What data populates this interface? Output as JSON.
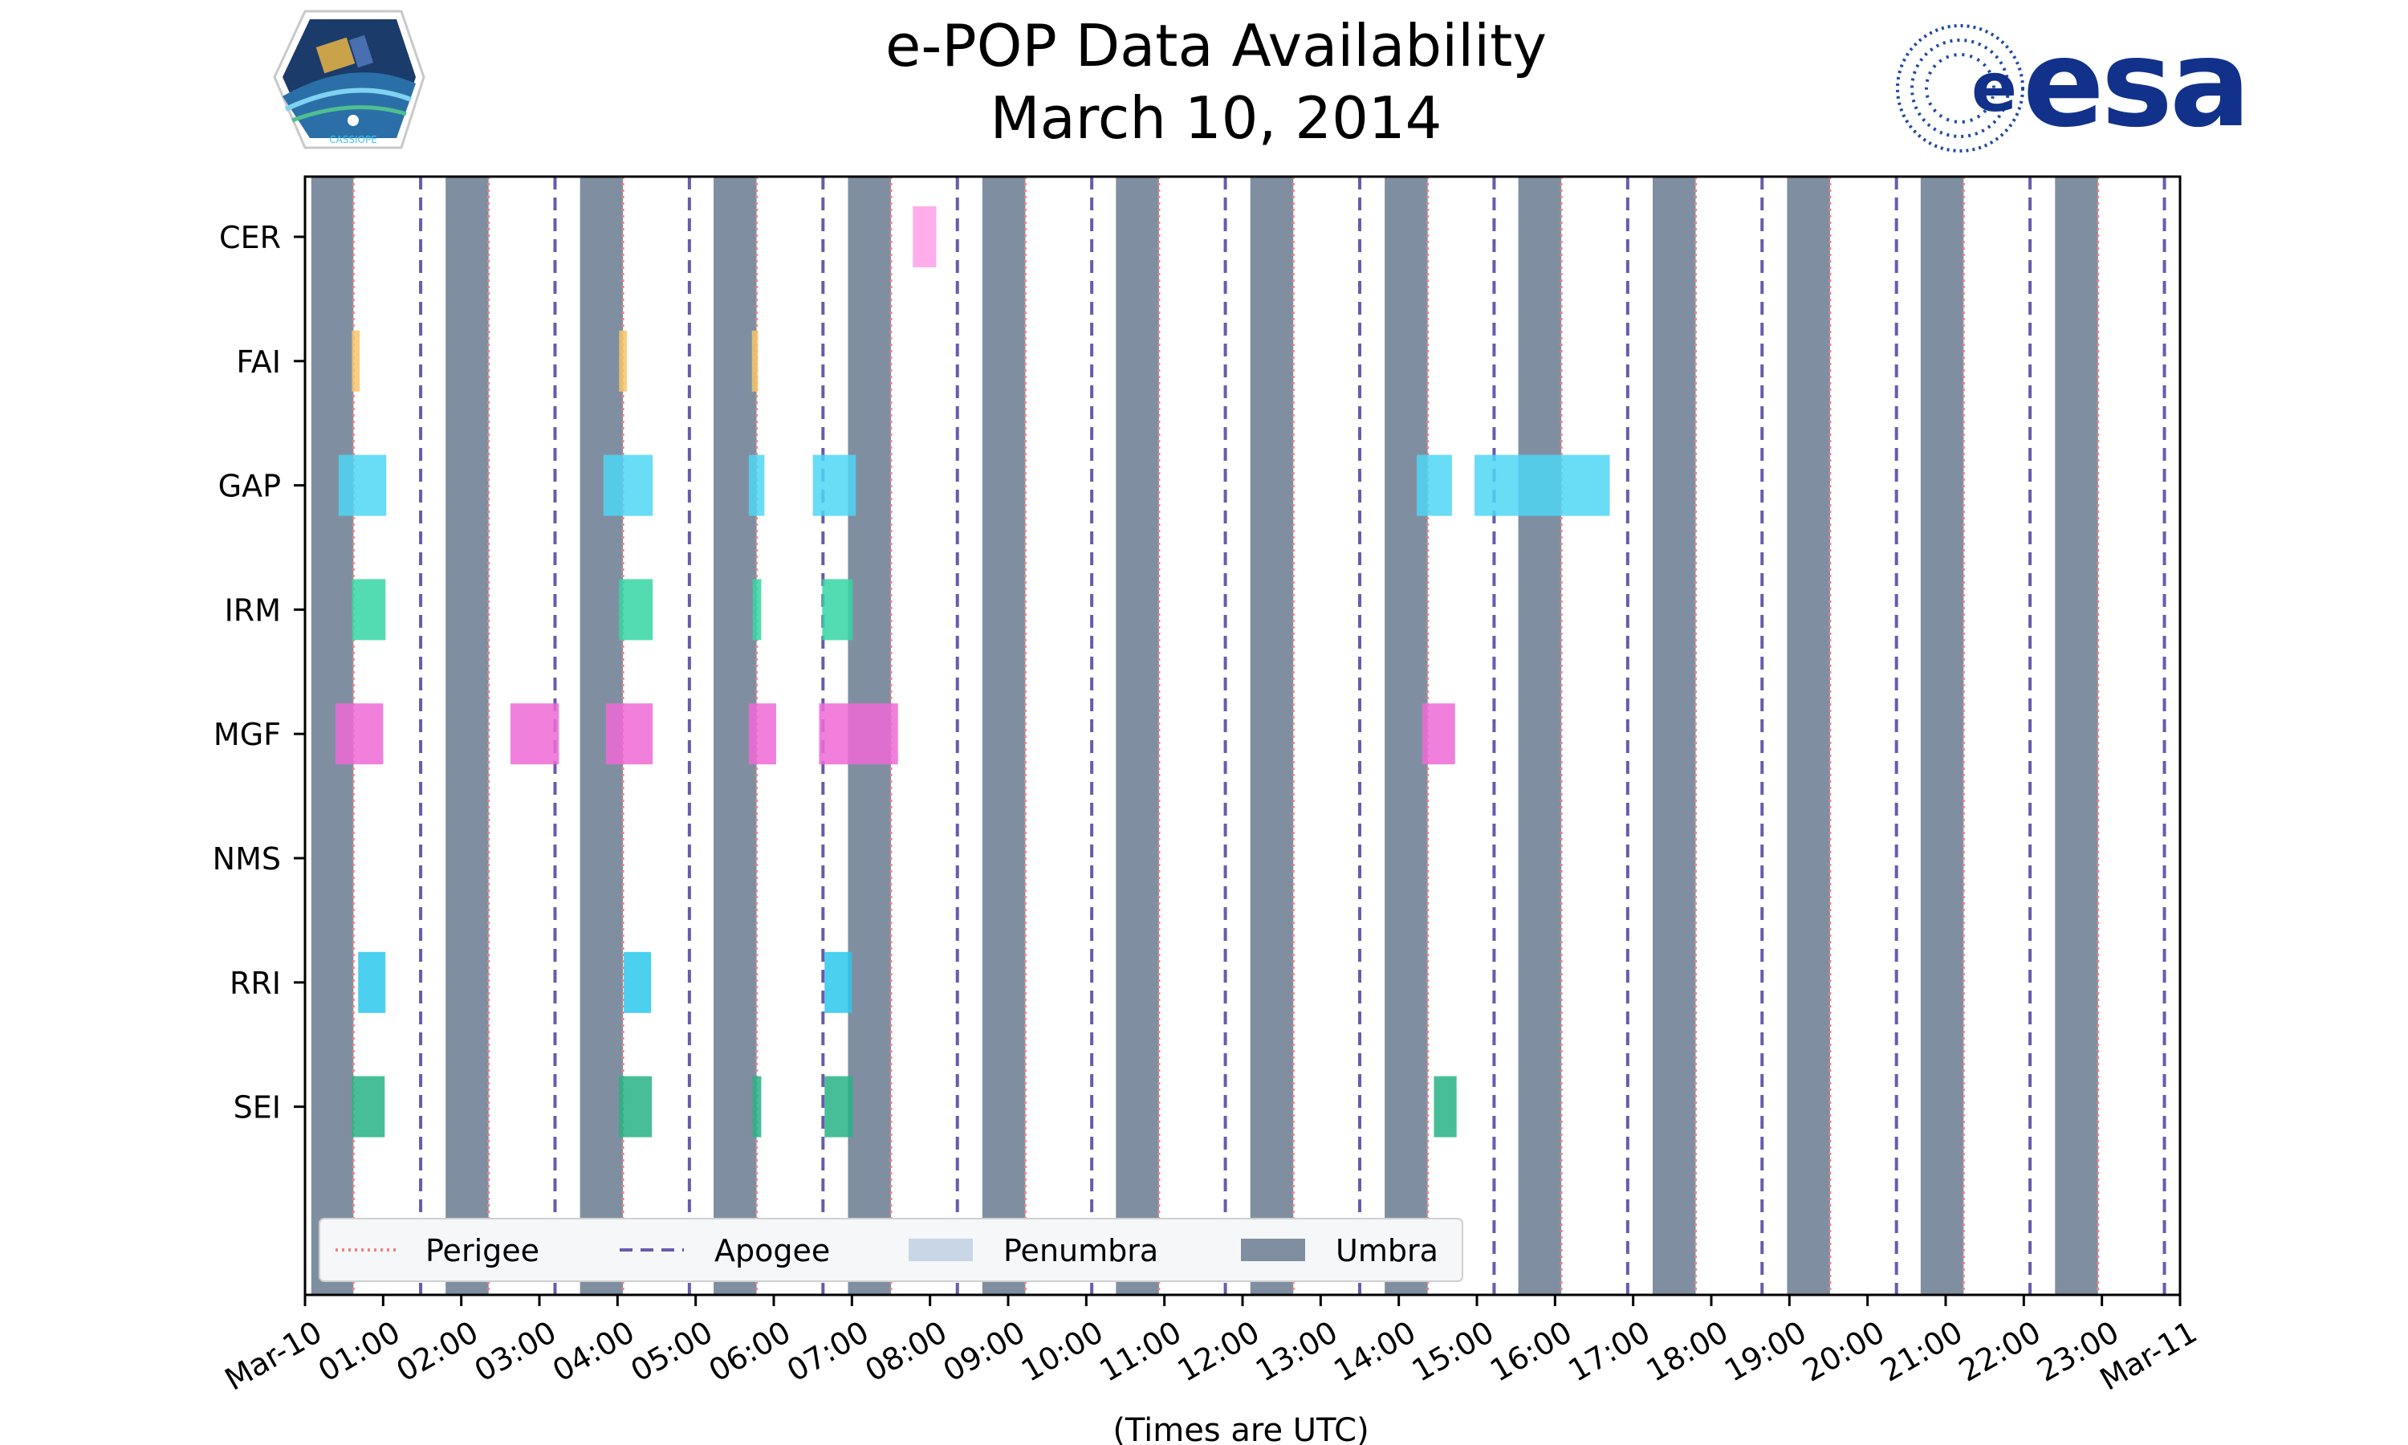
{
  "chart_data": {
    "type": "timeline",
    "title_line1": "e-POP Data Availability",
    "title_line2": "March 10, 2014",
    "xlabel": "(Times are UTC)",
    "xlim_hours": [
      0,
      24
    ],
    "x_tick_hours": [
      0,
      1,
      2,
      3,
      4,
      5,
      6,
      7,
      8,
      9,
      10,
      11,
      12,
      13,
      14,
      15,
      16,
      17,
      18,
      19,
      20,
      21,
      22,
      23,
      24
    ],
    "x_tick_labels": [
      "Mar-10",
      "01:00",
      "02:00",
      "03:00",
      "04:00",
      "05:00",
      "06:00",
      "07:00",
      "08:00",
      "09:00",
      "10:00",
      "11:00",
      "12:00",
      "13:00",
      "14:00",
      "15:00",
      "16:00",
      "17:00",
      "18:00",
      "19:00",
      "20:00",
      "21:00",
      "22:00",
      "23:00",
      "Mar-11"
    ],
    "instruments": [
      "CER",
      "FAI",
      "GAP",
      "IRM",
      "MGF",
      "NMS",
      "RRI",
      "SEI"
    ],
    "colors": {
      "CER": "#ff9fe8",
      "FAI": "#f7c66a",
      "GAP": "#4fd6f5",
      "IRM": "#35d6a3",
      "MGF": "#ef6ad6",
      "NMS": "#888888",
      "RRI": "#2bc8ec",
      "SEI": "#27b386",
      "umbra": "#7f8fa1",
      "penumbra": "#c8d6e6",
      "perigee": "#f08080",
      "apogee": "#6a5aad"
    },
    "umbra_intervals_hours": [
      [
        0.08,
        0.62
      ],
      [
        1.8,
        2.35
      ],
      [
        3.52,
        4.07
      ],
      [
        5.23,
        5.78
      ],
      [
        6.95,
        7.5
      ],
      [
        8.67,
        9.22
      ],
      [
        10.38,
        10.93
      ],
      [
        12.1,
        12.65
      ],
      [
        13.82,
        14.37
      ],
      [
        15.53,
        16.08
      ],
      [
        17.25,
        17.8
      ],
      [
        18.97,
        19.52
      ],
      [
        20.68,
        21.23
      ],
      [
        22.4,
        22.95
      ]
    ],
    "perigee_hours": [
      0.62,
      2.35,
      4.07,
      5.78,
      7.5,
      9.22,
      10.93,
      12.65,
      14.37,
      16.08,
      17.8,
      19.52,
      21.23,
      22.95
    ],
    "apogee_hours": [
      1.48,
      3.2,
      4.92,
      6.63,
      8.35,
      10.07,
      11.78,
      13.5,
      15.22,
      16.93,
      18.65,
      20.37,
      22.08,
      23.8
    ],
    "availability_hours": {
      "CER": [
        [
          7.78,
          8.08
        ]
      ],
      "FAI": [
        [
          0.6,
          0.7
        ],
        [
          4.02,
          4.12
        ],
        [
          5.72,
          5.8
        ]
      ],
      "GAP": [
        [
          0.43,
          1.04
        ],
        [
          3.82,
          4.45
        ],
        [
          5.68,
          5.88
        ],
        [
          6.5,
          7.05
        ],
        [
          14.23,
          14.68
        ],
        [
          14.97,
          16.7
        ]
      ],
      "IRM": [
        [
          0.6,
          1.03
        ],
        [
          4.02,
          4.45
        ],
        [
          5.73,
          5.84
        ],
        [
          6.62,
          7.01
        ]
      ],
      "MGF": [
        [
          0.39,
          1.0
        ],
        [
          2.63,
          3.25
        ],
        [
          3.85,
          4.45
        ],
        [
          5.68,
          6.03
        ],
        [
          6.58,
          7.59
        ],
        [
          14.3,
          14.72
        ]
      ],
      "NMS": [],
      "RRI": [
        [
          0.68,
          1.03
        ],
        [
          4.08,
          4.43
        ],
        [
          6.65,
          7.0
        ]
      ],
      "SEI": [
        [
          0.6,
          1.02
        ],
        [
          4.02,
          4.44
        ],
        [
          5.73,
          5.84
        ],
        [
          6.65,
          7.01
        ],
        [
          14.45,
          14.74
        ]
      ]
    },
    "legend": [
      {
        "key": "perigee",
        "label": "Perigee",
        "style": "dotted"
      },
      {
        "key": "apogee",
        "label": "Apogee",
        "style": "dashed"
      },
      {
        "key": "penumbra",
        "label": "Penumbra",
        "style": "patch"
      },
      {
        "key": "umbra",
        "label": "Umbra",
        "style": "patch"
      }
    ],
    "legend_position": "lower-left"
  },
  "logos": {
    "left_label": "CASSIOPE",
    "right_label": "esa"
  }
}
